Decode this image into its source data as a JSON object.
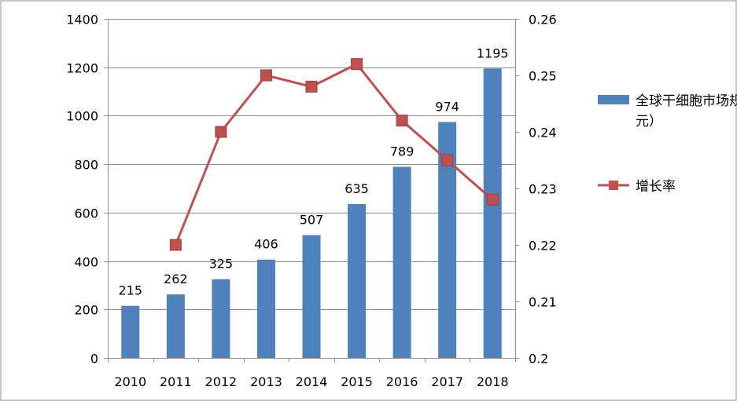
{
  "chart_data": {
    "type": "bar+line",
    "title": "",
    "categories": [
      "2010",
      "2011",
      "2012",
      "2013",
      "2014",
      "2015",
      "2016",
      "2017",
      "2018"
    ],
    "series": [
      {
        "name": "全球干细胞市场规模（亿美元）",
        "type": "bar",
        "axis": "left",
        "color": "#4f81bd",
        "values": [
          215,
          262,
          325,
          406,
          507,
          635,
          789,
          974,
          1195
        ],
        "labels": [
          "215",
          "262",
          "325",
          "406",
          "507",
          "635",
          "789",
          "974",
          "1195"
        ]
      },
      {
        "name": "增长率",
        "type": "line",
        "axis": "right",
        "color": "#c0504d",
        "values": [
          null,
          0.22,
          0.24,
          0.25,
          0.248,
          0.252,
          0.242,
          0.235,
          0.228
        ]
      }
    ],
    "y_left": {
      "range": [
        0,
        1400
      ],
      "ticks": [
        0,
        200,
        400,
        600,
        800,
        1000,
        1200,
        1400
      ],
      "tick_labels": [
        "0",
        "200",
        "400",
        "600",
        "800",
        "1000",
        "1200",
        "1400"
      ],
      "gridlines": true
    },
    "y_right": {
      "range": [
        0.2,
        0.26
      ],
      "ticks": [
        0.2,
        0.21,
        0.22,
        0.23,
        0.24,
        0.25,
        0.26
      ],
      "tick_labels": [
        "0.2",
        "0.21",
        "0.22",
        "0.23",
        "0.24",
        "0.25",
        "0.26"
      ]
    },
    "legend": {
      "placement": "right",
      "items": [
        {
          "series": 0,
          "lines": [
            "全球干细胞市场规模（亿美",
            "元）"
          ]
        },
        {
          "series": 1,
          "lines": [
            "增长率"
          ]
        }
      ]
    }
  }
}
